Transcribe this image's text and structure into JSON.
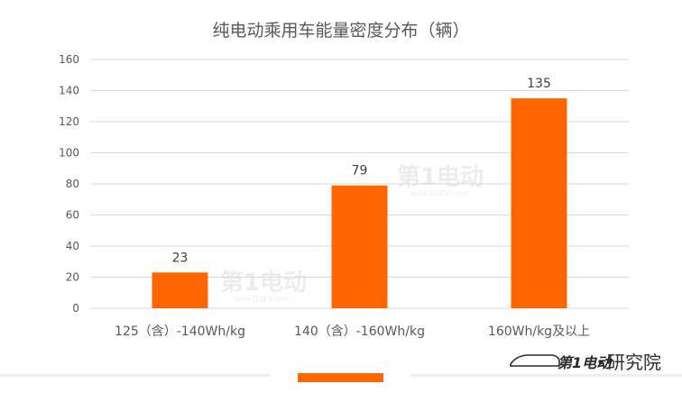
{
  "chart_data": {
    "type": "bar",
    "title": "纯电动乘用车能量密度分布（辆）",
    "categories": [
      "125（含）-140Wh/kg",
      "140（含）-160Wh/kg",
      "160Wh/kg及以上"
    ],
    "values": [
      23,
      79,
      135
    ],
    "ylim": [
      0,
      160
    ],
    "yticks": [
      0,
      20,
      40,
      60,
      80,
      100,
      120,
      140,
      160
    ],
    "grid": true,
    "bar_color": "#ff6600"
  },
  "watermark": {
    "brand": "第1电动",
    "domain": "www.D1EV.com"
  },
  "footer": {
    "brand": "第1电动",
    "suffix": "研究院",
    "accent_color": "#ff6600"
  }
}
